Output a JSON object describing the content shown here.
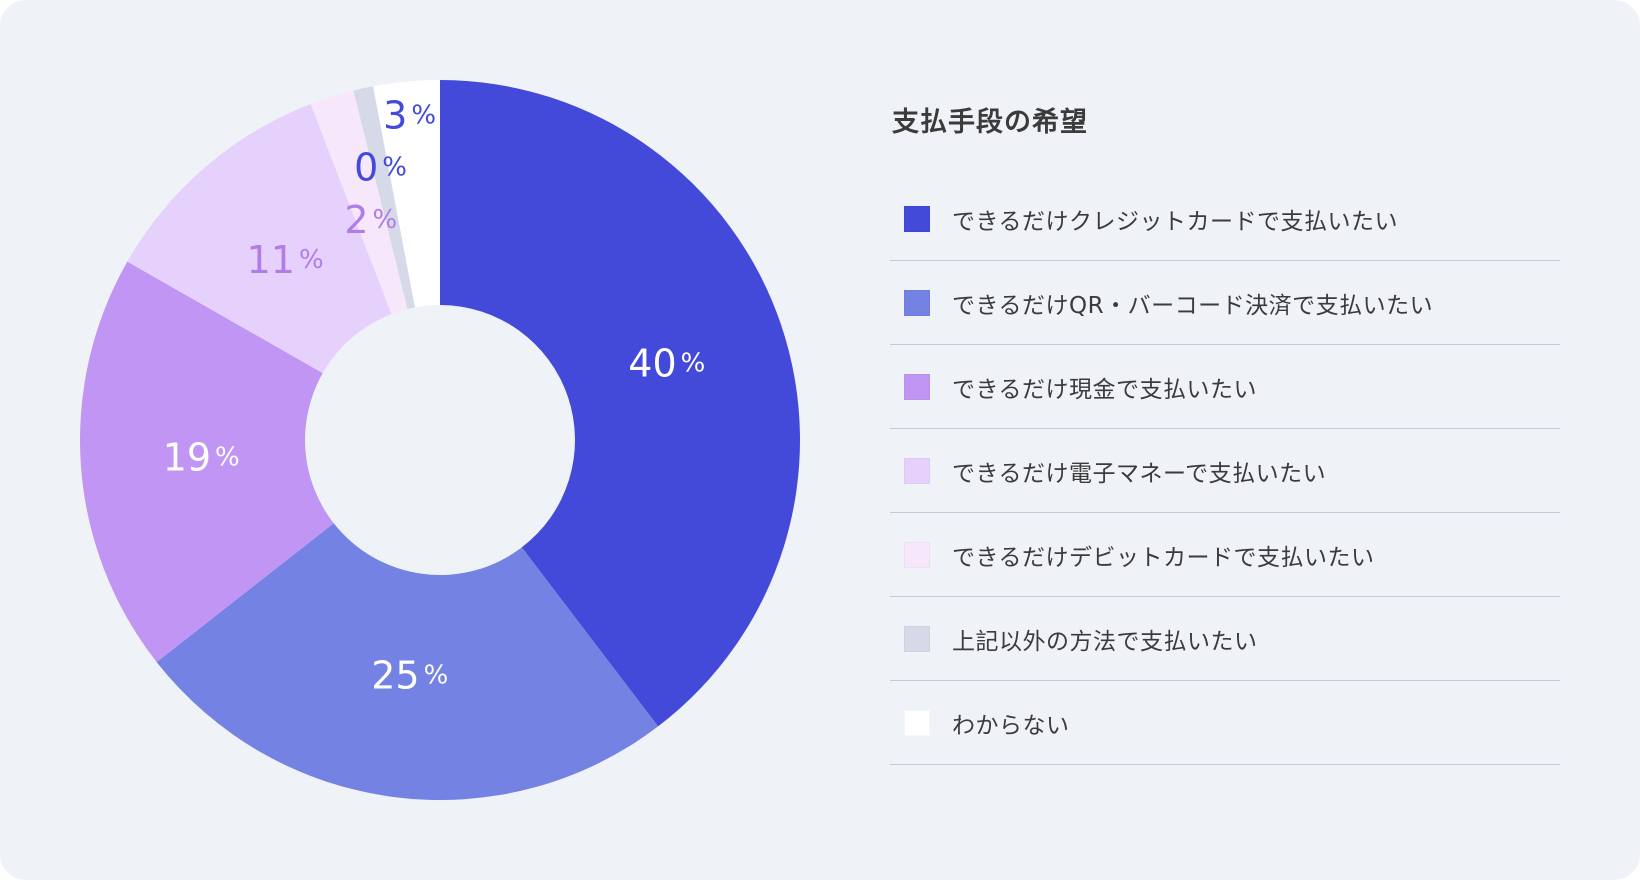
{
  "chart_data": {
    "type": "pie",
    "title": "支払手段の希望",
    "categories": [
      "できるだけクレジットカードで支払いたい",
      "できるだけQR・バーコード決済で支払いたい",
      "できるだけ現金で支払いたい",
      "できるだけ電子マネーで支払いたい",
      "できるだけデビットカードで支払いたい",
      "上記以外の方法で支払いたい",
      "わからない"
    ],
    "values": [
      40,
      25,
      19,
      11,
      2,
      0,
      3
    ],
    "value_labels": [
      "40",
      "25",
      "19",
      "11",
      "2",
      "0",
      "3"
    ],
    "unit": "%",
    "colors": [
      "#4349d8",
      "#7482e4",
      "#c095f3",
      "#e6d1fc",
      "#f6e7fb",
      "#d6d9e7",
      "#ffffff"
    ],
    "label_colors": [
      "#ffffff",
      "#ffffff",
      "#ffffff",
      "#b07ce8",
      "#b07ce8",
      "#4349d8",
      "#4349d8"
    ],
    "legend_position": "right"
  }
}
